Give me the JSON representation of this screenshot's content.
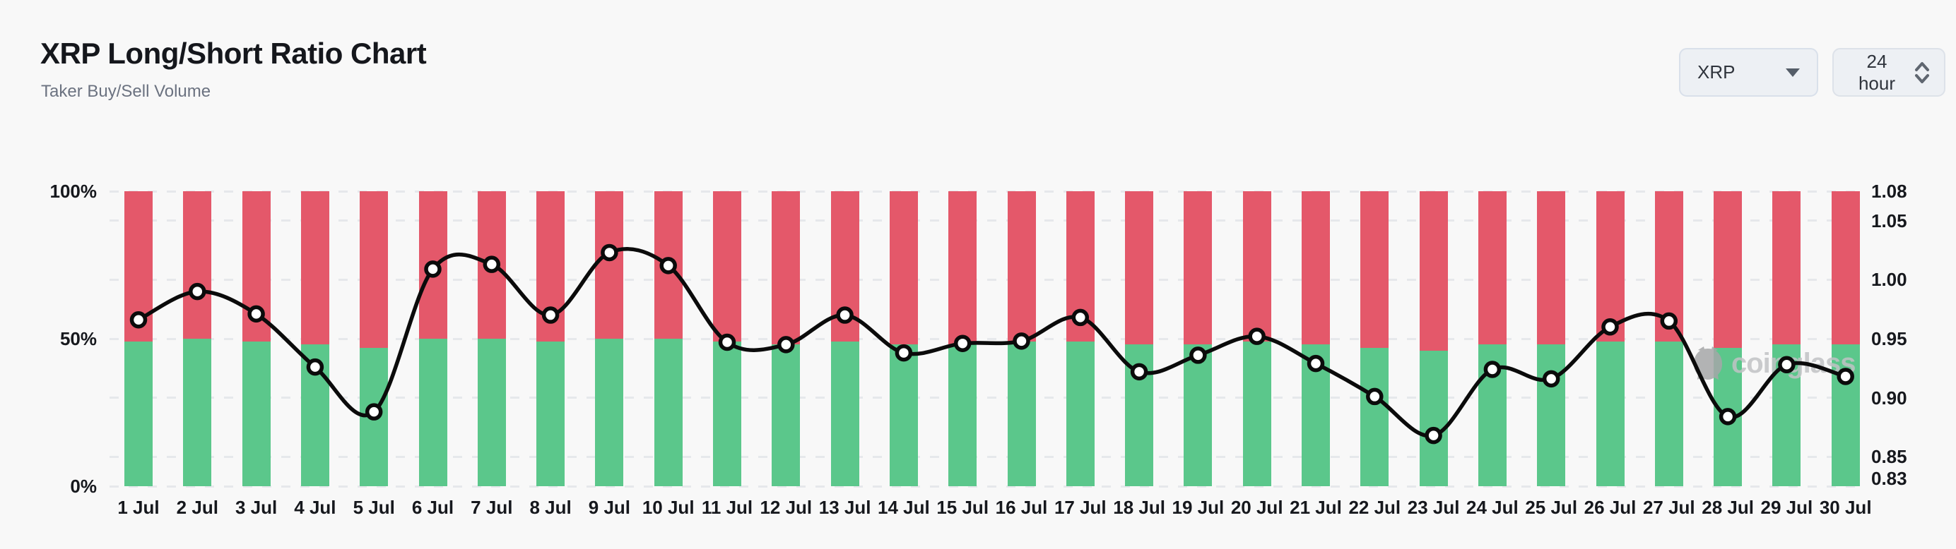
{
  "header": {
    "title": "XRP Long/Short Ratio Chart",
    "subtitle": "Taker Buy/Sell Volume"
  },
  "controls": {
    "symbol": "XRP",
    "interval": "24 hour"
  },
  "watermark": {
    "text": "coinglass"
  },
  "colors": {
    "background": "#f8f8f8",
    "long_green": "#5bc78b",
    "short_red": "#e4586a",
    "line_black": "#0b0b0b",
    "marker_fill": "#ffffff",
    "grid_gray": "#e6e8eb",
    "axis_text": "#16181d"
  },
  "chart_data": {
    "type": "bar",
    "title": "XRP Long/Short Ratio Chart",
    "subtitle": "Taker Buy/Sell Volume",
    "categories": [
      "1 Jul",
      "2 Jul",
      "3 Jul",
      "4 Jul",
      "5 Jul",
      "6 Jul",
      "7 Jul",
      "8 Jul",
      "9 Jul",
      "10 Jul",
      "11 Jul",
      "12 Jul",
      "13 Jul",
      "14 Jul",
      "15 Jul",
      "16 Jul",
      "17 Jul",
      "18 Jul",
      "19 Jul",
      "20 Jul",
      "21 Jul",
      "22 Jul",
      "23 Jul",
      "24 Jul",
      "25 Jul",
      "26 Jul",
      "27 Jul",
      "28 Jul",
      "29 Jul",
      "30 Jul"
    ],
    "series": [
      {
        "name": "long-percent",
        "type": "bar",
        "axis": "left",
        "values": [
          49,
          50,
          49,
          48,
          47,
          50,
          50,
          49,
          50,
          50,
          49,
          48,
          49,
          48,
          48,
          49,
          49,
          48,
          48,
          49,
          48,
          47,
          46,
          48,
          48,
          49,
          49,
          47,
          48,
          48
        ]
      },
      {
        "name": "short-percent",
        "type": "bar",
        "axis": "left",
        "values": [
          51,
          50,
          51,
          52,
          53,
          50,
          50,
          51,
          50,
          50,
          51,
          52,
          51,
          52,
          52,
          51,
          51,
          52,
          52,
          51,
          52,
          53,
          54,
          52,
          52,
          51,
          51,
          53,
          52,
          52
        ]
      },
      {
        "name": "price-line",
        "type": "line",
        "axis": "right",
        "values": [
          0.971,
          0.995,
          0.976,
          0.931,
          0.893,
          1.014,
          1.018,
          0.975,
          1.028,
          1.017,
          0.952,
          0.95,
          0.975,
          0.943,
          0.951,
          0.953,
          0.973,
          0.927,
          0.941,
          0.957,
          0.934,
          0.906,
          0.873,
          0.929,
          0.921,
          0.965,
          0.97,
          0.889,
          0.933,
          0.923
        ]
      }
    ],
    "left_axis": {
      "ticks": [
        {
          "label": "100%",
          "pct": 100
        },
        {
          "label": "50%",
          "pct": 50
        },
        {
          "label": "0%",
          "pct": 0
        }
      ],
      "range": [
        0,
        100
      ]
    },
    "right_axis": {
      "ticks": [
        {
          "label": "1.08",
          "pct": 100
        },
        {
          "label": "1.05",
          "pct": 90
        },
        {
          "label": "1.00",
          "pct": 70
        },
        {
          "label": "0.95",
          "pct": 50
        },
        {
          "label": "0.90",
          "pct": 30
        },
        {
          "label": "0.85",
          "pct": 10
        },
        {
          "label": "0.83",
          "pct": 0
        }
      ],
      "range": [
        0.83,
        1.08
      ]
    },
    "grid": "horizontal-dashed",
    "legend": "none",
    "stacked": true
  }
}
